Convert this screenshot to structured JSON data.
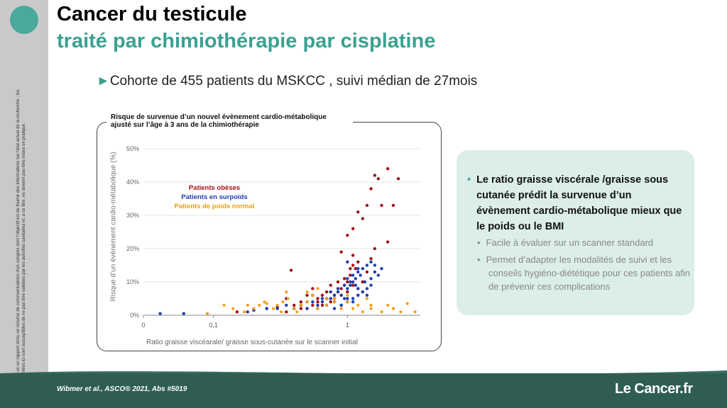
{
  "header": {
    "title": "Cancer du testicule",
    "subtitle": "traité par chimiothérapie par cisplatine"
  },
  "bullet": {
    "symbol": "►",
    "text": "Cohorte de 455 patients du MSKCC , suivi médian de 27mois"
  },
  "sidebar": {
    "disclaimer": "Ce contenu est un un rapport et/ou un résumé de communications d'un congrès dont l'objectif est de fournir des informations sur l'état actuel de la recherche ; les données présentées ici sont susceptibles de ne pas être validées par les autorités sanitaires et, à ce titre, ne doivent pas être mises en pratique."
  },
  "info": {
    "main": "Le ratio graisse viscérale /graisse sous cutanée prédit la survenue d’un évènement cardio-métabolique mieux que le poids ou le BMI",
    "points": [
      "Facile à évaluer sur un scanner standard",
      "Permet d’adapter les modalités de suivi et les conseils hygiéno-diététique pour ces patients afin de prévenir ces complications"
    ]
  },
  "footer": {
    "reference": "Wibmer et al., ASCO® 2021, Abs #5019",
    "brand": "Le Cancer.fr"
  },
  "colors": {
    "accent": "#3aa191",
    "obese": "#a50f15",
    "overweight": "#1f3fb0",
    "normal": "#f39c12"
  },
  "chart_data": {
    "type": "scatter",
    "title": "Risque de survenue d’un nouvel évènement cardio-métabolique ajusté sur l’âge à 3 ans de la chimiothérapie",
    "xlabel": "Ratio graisse viscéarale/ graisse sous-cutanée sur le scanner initial",
    "ylabel": "Risque d’un évènement cardio-métabolique (%)",
    "x_scale": "log",
    "xlim": [
      0.03,
      3.5
    ],
    "ylim": [
      0,
      50
    ],
    "x_ticks": [
      {
        "value": 0.03,
        "label": "0"
      },
      {
        "value": 0.1,
        "label": "0,1"
      },
      {
        "value": 1,
        "label": "1"
      }
    ],
    "y_ticks": [
      {
        "value": 0,
        "label": "0%"
      },
      {
        "value": 10,
        "label": "10%"
      },
      {
        "value": 20,
        "label": "20%"
      },
      {
        "value": 30,
        "label": "30%"
      },
      {
        "value": 40,
        "label": "40%"
      },
      {
        "value": 50,
        "label": "50%"
      }
    ],
    "grid": true,
    "legend": "upper-left",
    "series": [
      {
        "name": "Patients obèses",
        "color": "#a50f15",
        "x": [
          0.15,
          0.2,
          0.25,
          0.3,
          0.35,
          0.4,
          0.45,
          0.5,
          0.55,
          0.6,
          0.65,
          0.7,
          0.75,
          0.8,
          0.85,
          0.9,
          0.95,
          1.0,
          1.05,
          1.1,
          1.15,
          1.2,
          0.8,
          0.9,
          1.0,
          1.1,
          0.85,
          0.95,
          1.05,
          0.9,
          1.0,
          1.1,
          1.2,
          1.3,
          1.4,
          1.5,
          1.6,
          1.7,
          1.8,
          2.0,
          2.2,
          2.4,
          1.2,
          1.3,
          1.4,
          1.5,
          1.6,
          2.0,
          0.38,
          0.35,
          0.5,
          0.6,
          0.7,
          0.45,
          0.55,
          0.65,
          0.75,
          1.3,
          1.1
        ],
        "y": [
          1,
          1.5,
          2,
          2.5,
          1,
          3,
          2,
          2,
          3,
          4,
          3,
          5,
          4,
          6,
          7,
          8,
          9,
          10,
          12,
          15,
          14,
          16,
          5,
          6,
          7,
          9,
          10,
          11,
          14,
          19,
          24,
          26,
          31,
          29,
          33,
          38,
          42,
          41,
          33,
          44,
          33,
          41,
          8,
          10,
          13,
          17,
          20,
          22,
          13.5,
          5,
          6,
          5,
          7,
          4,
          8,
          6,
          9,
          10,
          18
        ],
        "marker_size": 2.2
      },
      {
        "name": "Patients en surpoids",
        "color": "#1f3fb0",
        "x": [
          0.04,
          0.06,
          0.18,
          0.2,
          0.25,
          0.3,
          0.35,
          0.4,
          0.45,
          0.5,
          0.55,
          0.6,
          0.65,
          0.7,
          0.75,
          0.8,
          0.85,
          0.9,
          0.95,
          1.0,
          1.05,
          1.1,
          1.15,
          1.2,
          1.3,
          1.4,
          1.5,
          1.6,
          1.7,
          1.8,
          0.6,
          0.7,
          0.8,
          0.9,
          1.0,
          1.1,
          1.2,
          1.3,
          1.4,
          1.5,
          1.0,
          1.1,
          1.2,
          1.3,
          1.4,
          1.5,
          1.6,
          0.5,
          0.55,
          0.65,
          0.75,
          0.85,
          0.95,
          1.05,
          1.15,
          1.25,
          0.4,
          0.45,
          1.0,
          1.2,
          1.35,
          0.8,
          0.9,
          1.0,
          1.1,
          1.2
        ],
        "y": [
          0.5,
          0.5,
          1,
          1.5,
          2,
          2,
          3,
          2,
          3,
          2,
          4,
          3,
          4,
          5,
          5,
          6,
          7,
          6,
          5,
          8,
          9,
          10,
          9,
          8,
          7,
          6,
          11,
          13,
          12,
          14,
          2,
          3,
          4,
          3,
          5,
          4,
          6,
          7,
          8,
          9,
          11,
          12,
          13,
          14,
          15,
          16,
          15,
          4,
          6,
          5,
          7,
          8,
          9,
          10,
          11,
          12,
          2,
          3,
          16,
          14,
          10,
          2,
          3,
          4,
          5,
          6
        ],
        "marker_size": 2.2
      },
      {
        "name": "Patients de poids normal",
        "color": "#f39c12",
        "x": [
          0.09,
          0.12,
          0.14,
          0.17,
          0.2,
          0.22,
          0.25,
          0.28,
          0.3,
          0.33,
          0.36,
          0.4,
          0.45,
          0.5,
          0.55,
          0.6,
          0.7,
          0.8,
          0.9,
          1.0,
          1.1,
          1.3,
          1.5,
          1.8,
          2.0,
          2.2,
          2.5,
          3.2,
          0.35,
          0.5,
          0.6,
          0.7,
          0.8,
          1.0,
          1.2,
          1.5,
          0.18,
          0.24,
          1.4,
          2.8,
          0.32,
          0.42
        ],
        "y": [
          0.5,
          3,
          2,
          1,
          2,
          3,
          3.5,
          2,
          3,
          4,
          5,
          2,
          3,
          4,
          6,
          2,
          3,
          5,
          2,
          4,
          2,
          1,
          2,
          1,
          3,
          2,
          1,
          1,
          7,
          7,
          8,
          5,
          4,
          6,
          3,
          3,
          3,
          4,
          5,
          3.5,
          1,
          1
        ],
        "marker_size": 2
      }
    ]
  }
}
